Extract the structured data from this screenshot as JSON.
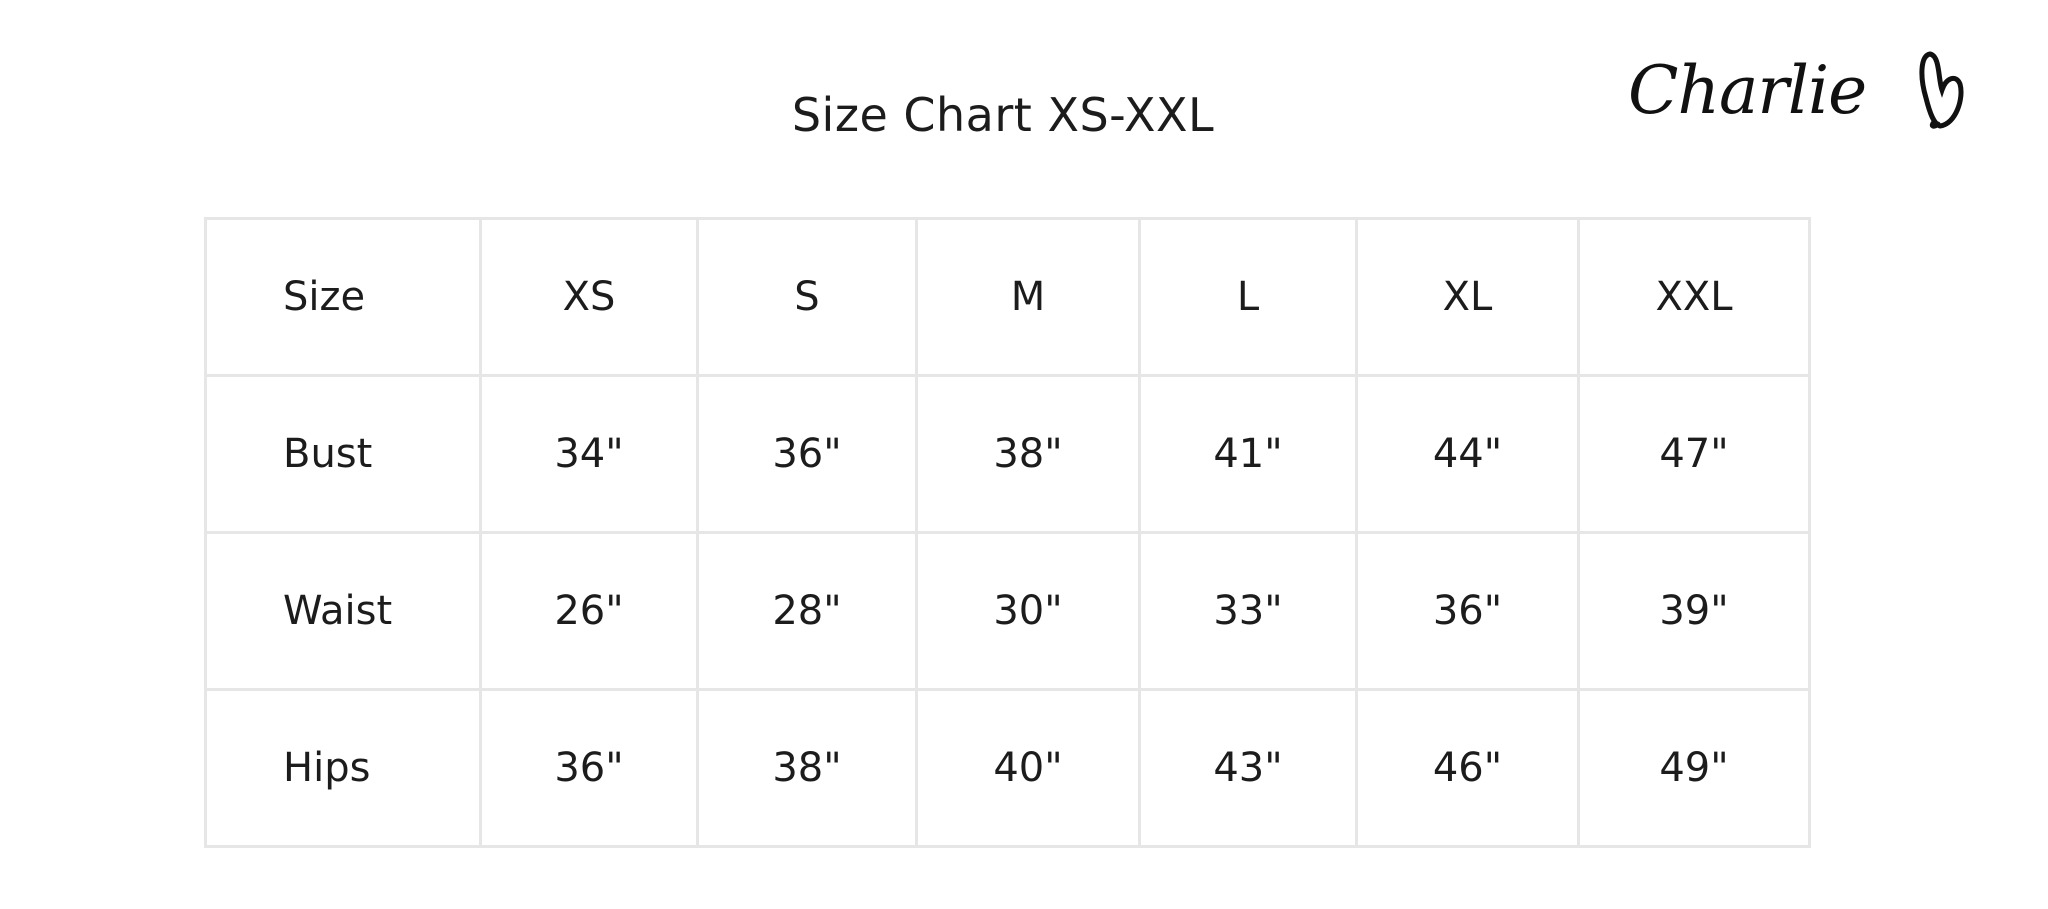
{
  "title": "Size Chart XS-XXL",
  "logo": {
    "text": "Charlie",
    "icon": "heart-icon"
  },
  "table": {
    "header": [
      "Size",
      "XS",
      "S",
      "M",
      "L",
      "XL",
      "XXL"
    ],
    "rows": [
      [
        "Bust",
        "34\"",
        "36\"",
        "38\"",
        "41\"",
        "44\"",
        "47\""
      ],
      [
        "Waist",
        "26\"",
        "28\"",
        "30\"",
        "33\"",
        "36\"",
        "39\""
      ],
      [
        "Hips",
        "36\"",
        "38\"",
        "40\"",
        "43\"",
        "46\"",
        "49\""
      ]
    ]
  }
}
